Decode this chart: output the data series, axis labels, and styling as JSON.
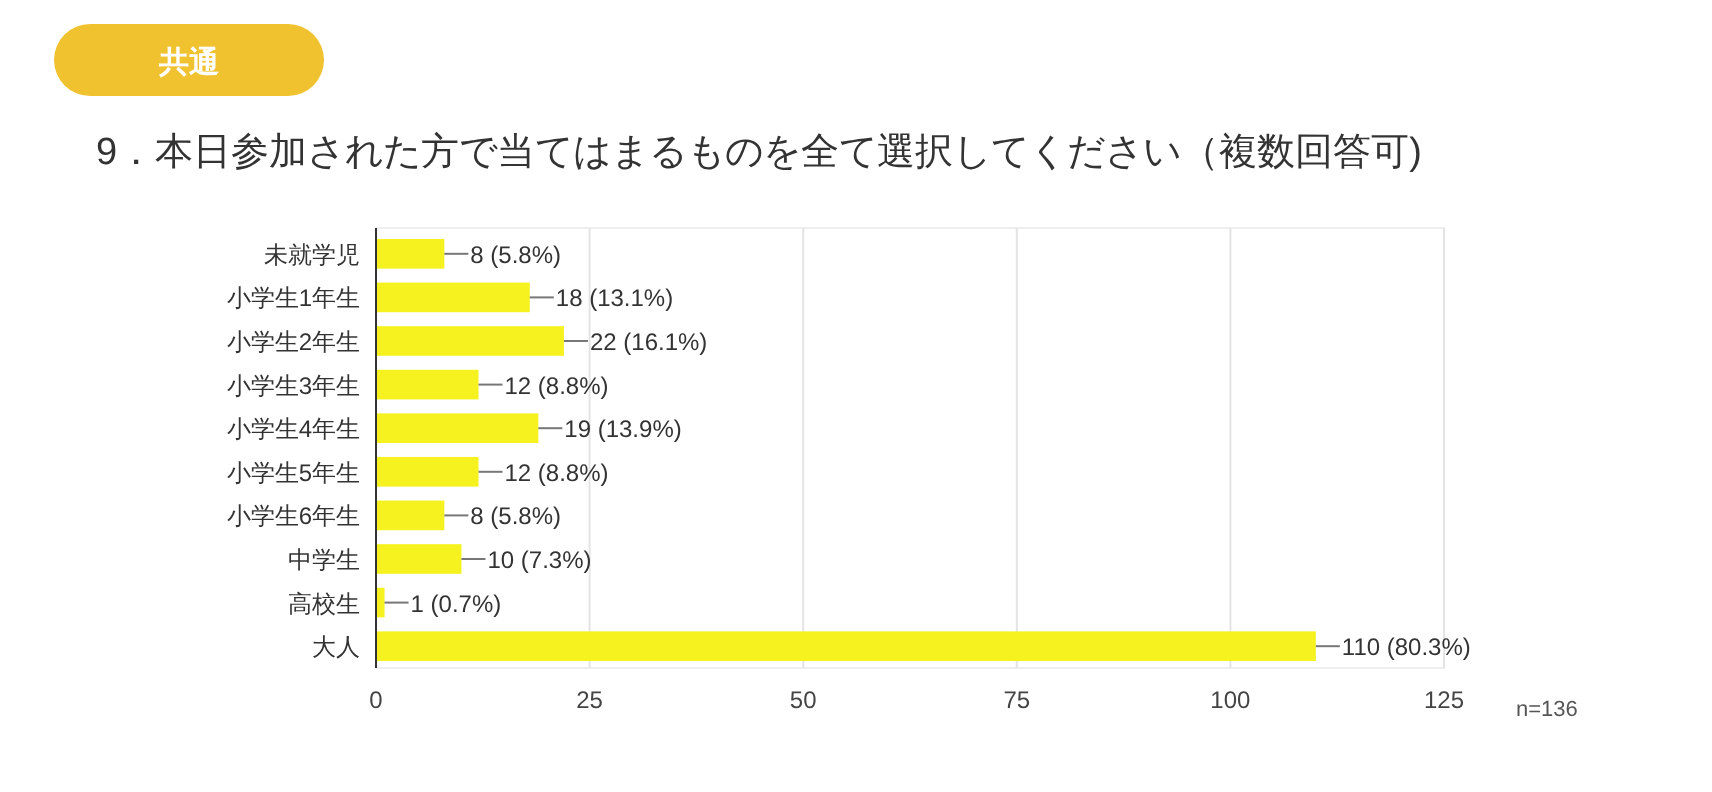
{
  "chart_data": {
    "type": "bar",
    "orientation": "horizontal",
    "title": "9．本日参加された方で当てはまるものを全て選択してください（複数回答可)",
    "categories": [
      "未就学児",
      "小学生1年生",
      "小学生2年生",
      "小学生3年生",
      "小学生4年生",
      "小学生5年生",
      "小学生6年生",
      "中学生",
      "高校生",
      "大人"
    ],
    "values": [
      8,
      18,
      22,
      12,
      19,
      12,
      8,
      10,
      1,
      110
    ],
    "value_labels": [
      "8 (5.8%)",
      "18 (13.1%)",
      "22 (16.1%)",
      "12 (8.8%)",
      "19 (13.9%)",
      "12 (8.8%)",
      "8 (5.8%)",
      "10 (7.3%)",
      "1 (0.7%)",
      "110 (80.3%)"
    ],
    "color": "#f5f21f",
    "xlim": [
      0,
      125
    ],
    "xticks": [
      0,
      25,
      50,
      75,
      100,
      125
    ],
    "grid": "x",
    "annotations": [
      "共通",
      "n=136"
    ]
  }
}
